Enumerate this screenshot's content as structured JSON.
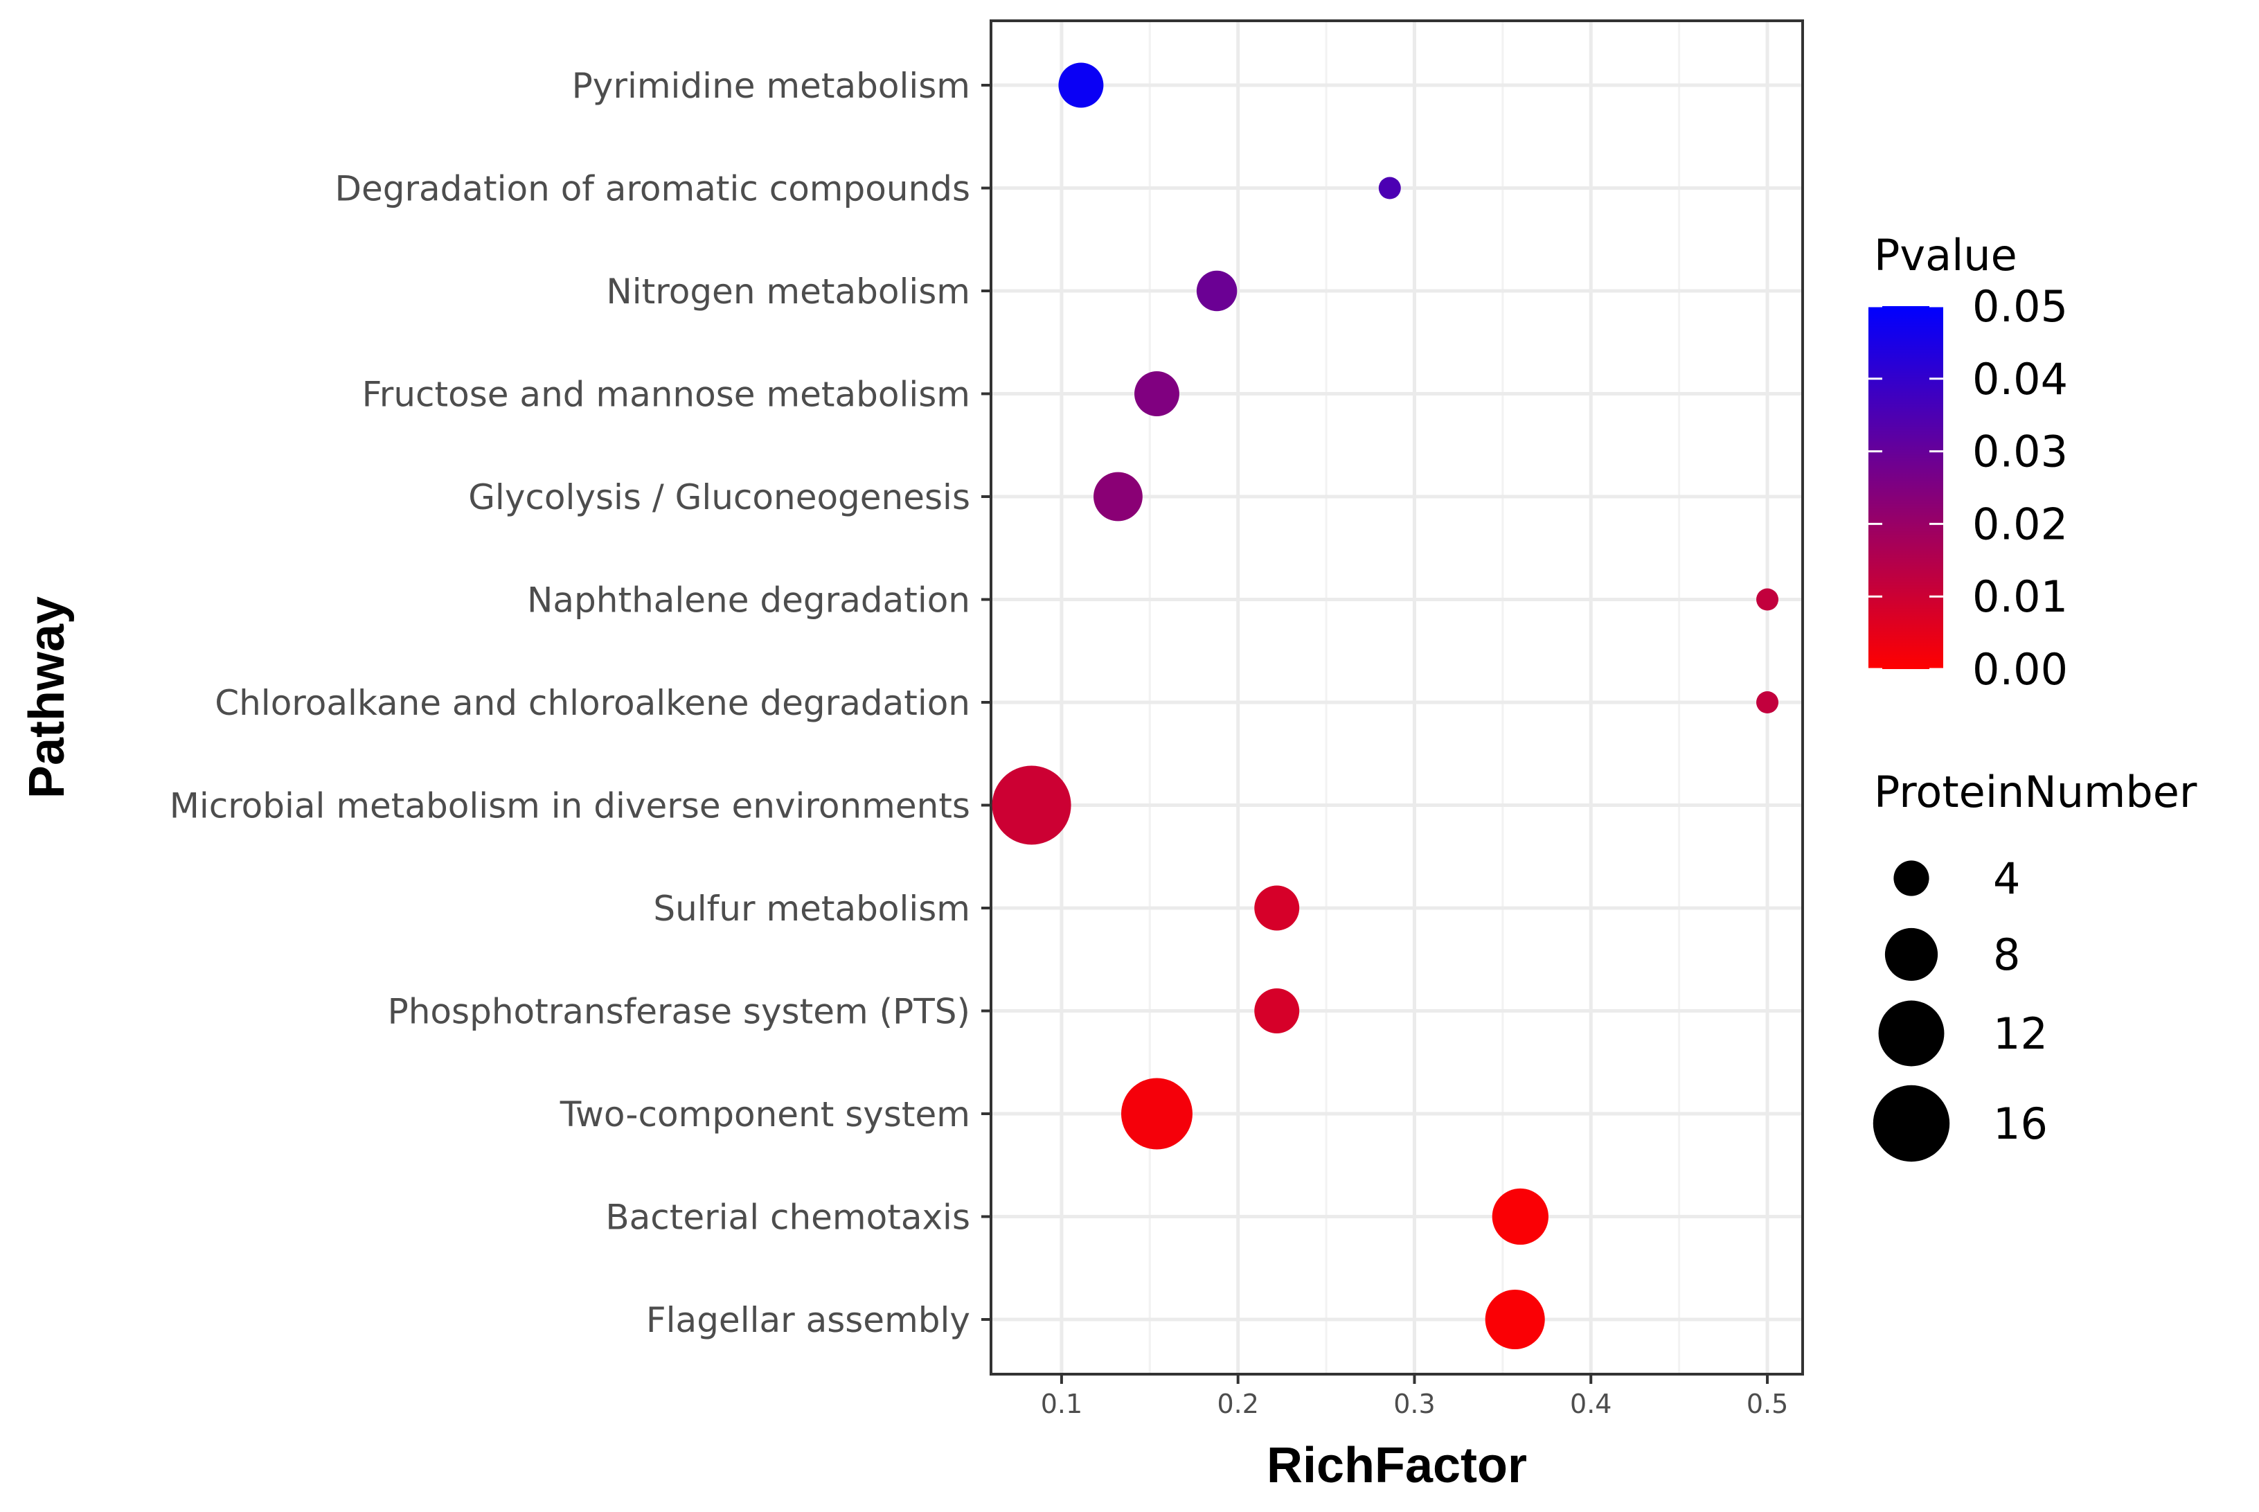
{
  "chart_data": {
    "type": "scatter",
    "xlabel": "RichFactor",
    "ylabel": "Pathway",
    "xlim": [
      0.06,
      0.52
    ],
    "xticks": [
      0.1,
      0.2,
      0.3,
      0.4,
      0.5
    ],
    "xtick_labels": [
      "0.1",
      "0.2",
      "0.3",
      "0.4",
      "0.5"
    ],
    "grid": true,
    "points": [
      {
        "pathway": "Pyrimidine metabolism",
        "rich_factor": 0.111,
        "pvalue": 0.048,
        "protein_number": 6
      },
      {
        "pathway": "Degradation of aromatic compounds",
        "rich_factor": 0.286,
        "pvalue": 0.035,
        "protein_number": 2
      },
      {
        "pathway": "Nitrogen metabolism",
        "rich_factor": 0.188,
        "pvalue": 0.029,
        "protein_number": 5
      },
      {
        "pathway": "Fructose and mannose metabolism",
        "rich_factor": 0.154,
        "pvalue": 0.025,
        "protein_number": 6
      },
      {
        "pathway": "Glycolysis / Gluconeogenesis",
        "rich_factor": 0.132,
        "pvalue": 0.023,
        "protein_number": 7
      },
      {
        "pathway": "Naphthalene degradation",
        "rich_factor": 0.5,
        "pvalue": 0.012,
        "protein_number": 2
      },
      {
        "pathway": "Chloroalkane and chloroalkene degradation",
        "rich_factor": 0.5,
        "pvalue": 0.012,
        "protein_number": 2
      },
      {
        "pathway": "Microbial metabolism in diverse environments",
        "rich_factor": 0.083,
        "pvalue": 0.01,
        "protein_number": 17
      },
      {
        "pathway": "Sulfur metabolism",
        "rich_factor": 0.222,
        "pvalue": 0.008,
        "protein_number": 6
      },
      {
        "pathway": "Phosphotransferase system (PTS)",
        "rich_factor": 0.222,
        "pvalue": 0.008,
        "protein_number": 6
      },
      {
        "pathway": "Two-component system",
        "rich_factor": 0.154,
        "pvalue": 0.002,
        "protein_number": 14
      },
      {
        "pathway": "Bacterial chemotaxis",
        "rich_factor": 0.36,
        "pvalue": 0.001,
        "protein_number": 9
      },
      {
        "pathway": "Flagellar assembly",
        "rich_factor": 0.357,
        "pvalue": 0.001,
        "protein_number": 10
      }
    ],
    "color_legend": {
      "title": "Pvalue",
      "range": [
        0.0,
        0.05
      ],
      "low_color": "#ff0000",
      "high_color": "#0000ff",
      "ticks": [
        0.05,
        0.04,
        0.03,
        0.02,
        0.01,
        0.0
      ],
      "tick_labels": [
        "0.05",
        "0.04",
        "0.03",
        "0.02",
        "0.01",
        "0.00"
      ]
    },
    "size_legend": {
      "title": "ProteinNumber",
      "values": [
        4,
        8,
        12,
        16
      ],
      "labels": [
        "4",
        "8",
        "12",
        "16"
      ],
      "color": "#000000"
    }
  }
}
